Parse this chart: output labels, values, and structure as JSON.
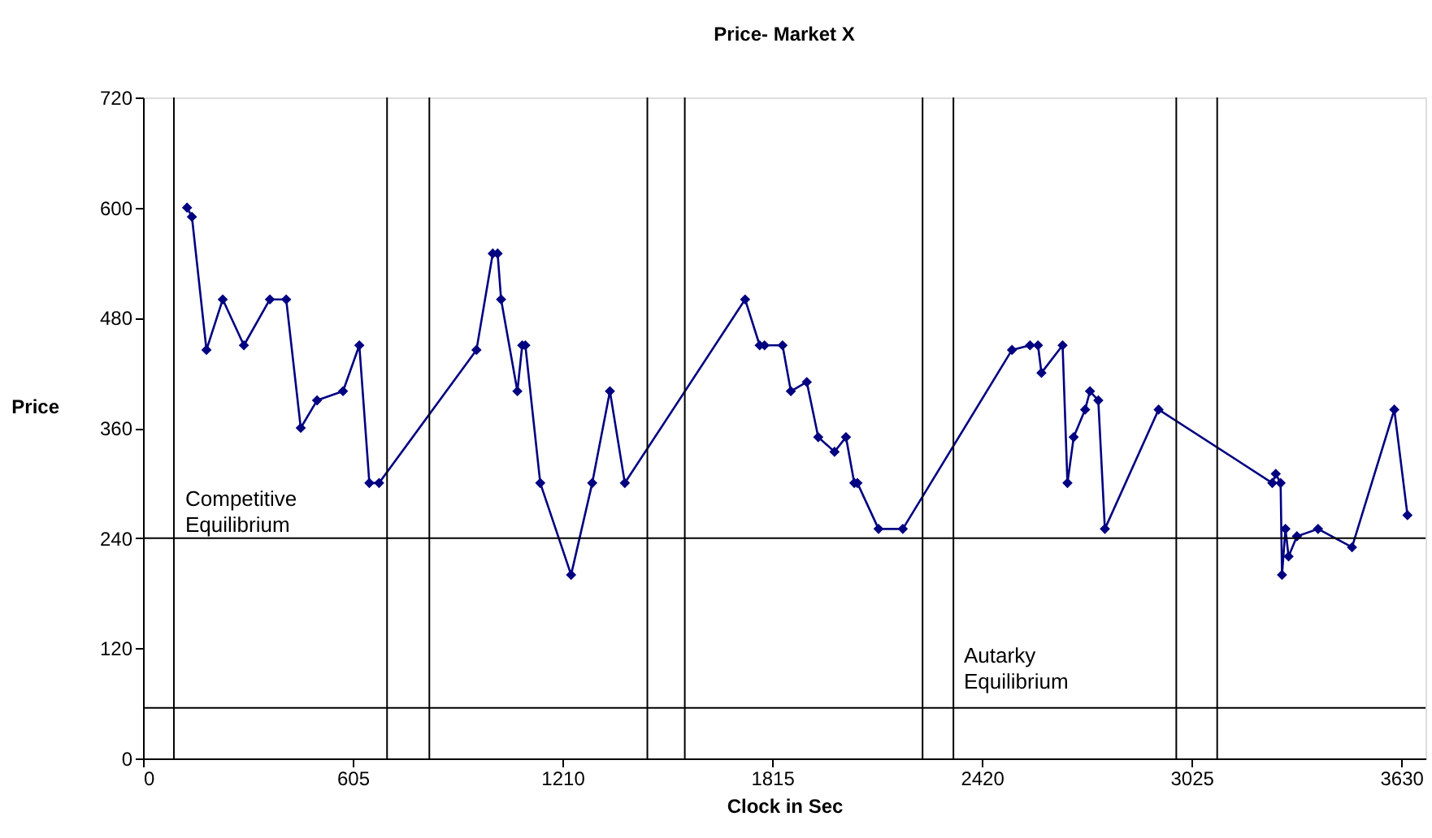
{
  "chart_data": {
    "type": "line",
    "title": "Price- Market X",
    "xlabel": "Clock in Sec",
    "ylabel": "Price",
    "x": [
      127,
      141,
      183,
      230,
      291,
      366,
      413,
      455,
      502,
      577,
      624,
      653,
      681,
      962,
      1009,
      1023,
      1033,
      1080,
      1094,
      1103,
      1146,
      1235,
      1296,
      1347,
      1390,
      1737,
      1779,
      1793,
      1845,
      1869,
      1915,
      1948,
      1995,
      2028,
      2052,
      2061,
      2122,
      2192,
      2507,
      2559,
      2582,
      2592,
      2653,
      2667,
      2685,
      2718,
      2732,
      2756,
      2775,
      2930,
      3258,
      3268,
      3282,
      3286,
      3296,
      3305,
      3329,
      3390,
      3488,
      3610,
      3648
    ],
    "series": [
      {
        "color": "#000080",
        "values": [
          600,
          590,
          445,
          500,
          450,
          500,
          500,
          360,
          390,
          400,
          450,
          300,
          300,
          445,
          550,
          550,
          500,
          400,
          450,
          450,
          300,
          200,
          300,
          400,
          300,
          500,
          450,
          450,
          450,
          400,
          410,
          350,
          334,
          350,
          300,
          300,
          250,
          250,
          445,
          450,
          450,
          420,
          450,
          300,
          350,
          380,
          400,
          390,
          250,
          380,
          300,
          310,
          300,
          200,
          250,
          220,
          242,
          250,
          230,
          380,
          265
        ]
      }
    ],
    "marker": "diamond",
    "line_style": "solid",
    "grid": false,
    "xlim": [
      0,
      3700
    ],
    "xticks": [
      0,
      605,
      {
        "value": 1210,
        "label": "1210"
      },
      {
        "value": 1815,
        "label": "1815"
      },
      {
        "value": 2420,
        "label": "2420"
      },
      {
        "value": 3025,
        "label": "3025"
      },
      {
        "value": 3630,
        "label": "3630"
      }
    ],
    "ylim": [
      0,
      720
    ],
    "yticks": [
      0,
      120,
      240,
      360,
      480,
      600,
      720
    ],
    "ref_lines": [
      {
        "axis": "y",
        "value": 240,
        "color": "#000000",
        "label": "Competitive\nEquilibrium"
      },
      {
        "axis": "y",
        "value": 55,
        "color": "#000000",
        "label": "Autarky\nEquilibrium"
      },
      {
        "axis": "x",
        "value": 89,
        "color": "#000000"
      },
      {
        "axis": "x",
        "value": 704,
        "color": "#000000"
      },
      {
        "axis": "x",
        "value": 826,
        "color": "#000000"
      },
      {
        "axis": "x",
        "value": 1455,
        "color": "#000000"
      },
      {
        "axis": "x",
        "value": 1563,
        "color": "#000000"
      },
      {
        "axis": "x",
        "value": 2249,
        "color": "#000000"
      },
      {
        "axis": "x",
        "value": 2338,
        "color": "#000000"
      },
      {
        "axis": "x",
        "value": 2981,
        "color": "#000000"
      },
      {
        "axis": "x",
        "value": 3099,
        "color": "#000000"
      }
    ]
  }
}
